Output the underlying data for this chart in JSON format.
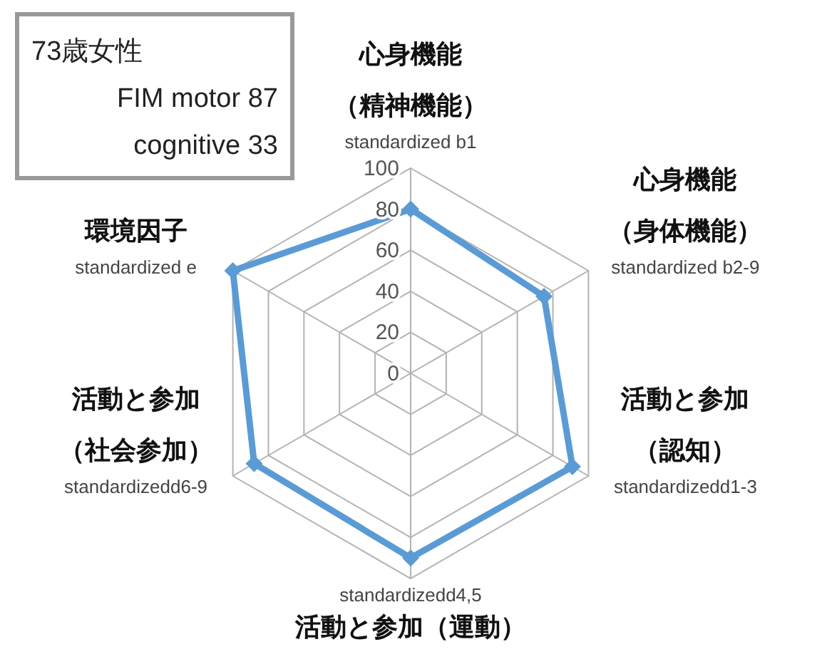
{
  "chart_data": {
    "type": "radar",
    "categories": [
      "心身機能（精神機能）\nstandardized b1",
      "心身機能（身体機能）\nstandardized b2-9",
      "活動と参加（認知）\nstandardizedd1-3",
      "活動と参加（運動）\nstandardizedd4,5",
      "活動と参加（社会参加）\nstandardizedd6-9",
      "環境因子\nstandardized e"
    ],
    "series": [
      {
        "color": "#5b9bd5",
        "values": [
          80,
          75,
          91,
          90,
          88,
          100
        ]
      }
    ],
    "ylim": [
      0,
      100
    ],
    "yticks": [
      0,
      20,
      40,
      60,
      80,
      100
    ],
    "grid": true,
    "marker": "diamond",
    "line_style": "solid",
    "annotations": [
      "73歳女性",
      "FIM motor 87",
      "cognitive 33"
    ]
  }
}
